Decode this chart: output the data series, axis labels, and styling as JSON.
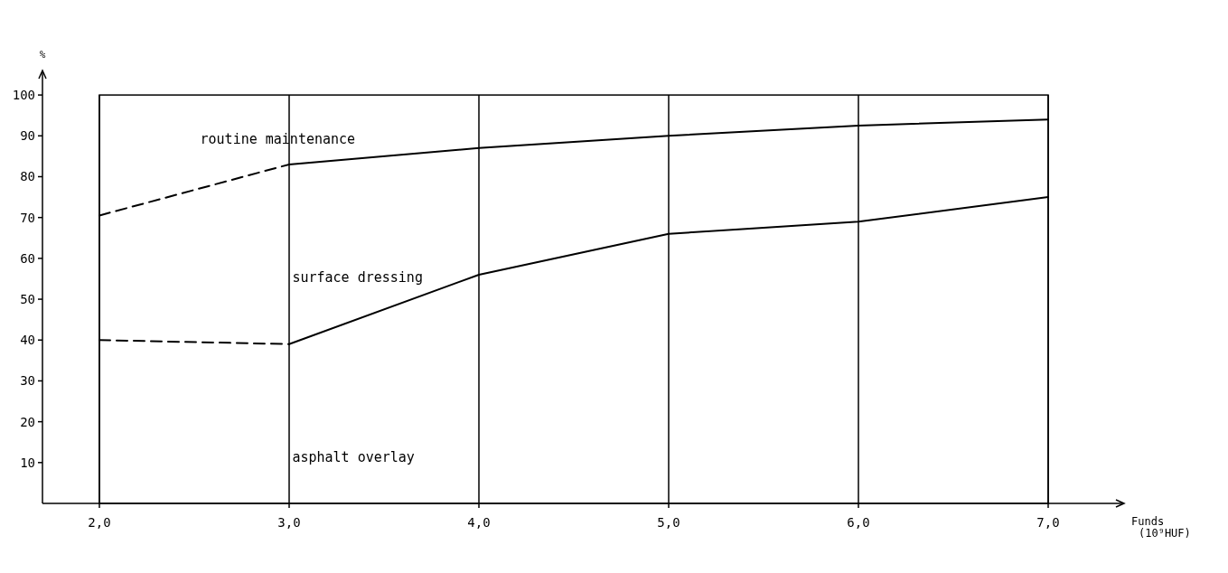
{
  "chart_data": {
    "type": "line",
    "xlabel": "Funds (10⁹HUF)",
    "ylabel": "%",
    "x": [
      2,
      3,
      4,
      5,
      6,
      7
    ],
    "series": [
      {
        "color": "#000000",
        "line_style": "dashed",
        "values": [
          70.5,
          83,
          null,
          null,
          null,
          null
        ]
      },
      {
        "color": "#000000",
        "line_style": "solid",
        "values": [
          null,
          83,
          87,
          90,
          92.5,
          94
        ]
      },
      {
        "color": "#000000",
        "line_style": "dashed",
        "values": [
          40,
          39,
          null,
          null,
          null,
          null
        ]
      },
      {
        "color": "#000000",
        "line_style": "solid",
        "values": [
          null,
          39,
          56,
          66,
          69,
          75
        ]
      }
    ],
    "xlim": [
      1.7,
      7.4
    ],
    "ylim": [
      0,
      106
    ],
    "xticks": [
      {
        "value": 2,
        "label": "2,0"
      },
      {
        "value": 3,
        "label": "3,0"
      },
      {
        "value": 4,
        "label": "4,0"
      },
      {
        "value": 5,
        "label": "5,0"
      },
      {
        "value": 6,
        "label": "6,0"
      },
      {
        "value": 7,
        "label": "7,0"
      }
    ],
    "yticks": [
      10,
      20,
      30,
      40,
      50,
      60,
      70,
      80,
      90,
      100
    ],
    "grid": "x",
    "marker": "none",
    "annotations": [
      "routine maintenance",
      "surface dressing",
      "asphalt overlay"
    ]
  }
}
